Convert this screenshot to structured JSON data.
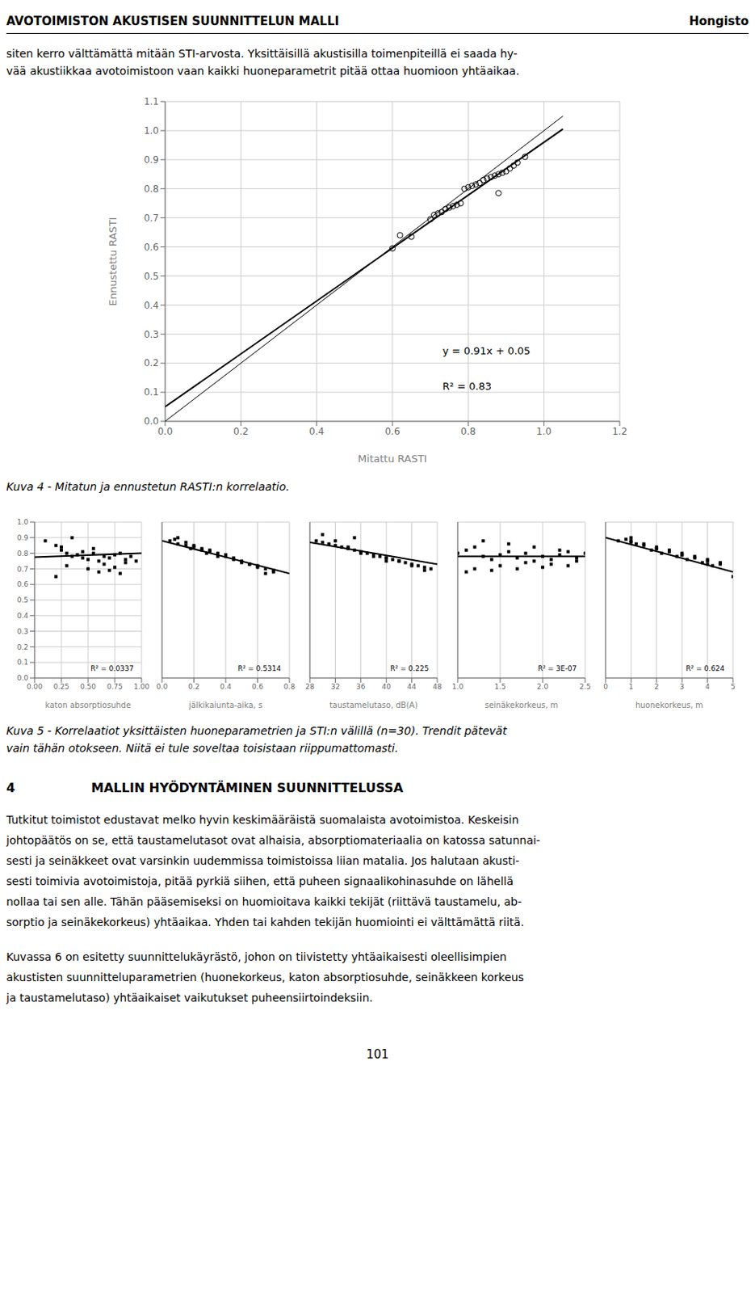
{
  "page": {
    "header_left": "AVOTOIMISTON AKUSTISEN SUUNNITTELUN MALLI",
    "header_right": "Hongisto",
    "paragraph_1": [
      "siten kerro välttämättä mitään STI-arvosta. Yksittäisillä akustisilla toimenpiteillä ei saada hy-",
      "vää akustiikkaa avotoimistoon vaan kaikki huoneparametrit pitää ottaa huomioon yhtäaikaa."
    ],
    "caption_4": "Kuva 4 - Mitatun ja ennustetun RASTI:n korrelaatio.",
    "caption_5": [
      "Kuva 5 - Korrelaatiot yksittäisten huoneparametrien ja STI:n välillä (n=30). Trendit pätevät",
      "vain tähän otokseen. Niitä ei tule soveltaa toisistaan riippumattomasti."
    ],
    "section_number": "4",
    "section_title": "MALLIN HYÖDYNTÄMINEN SUUNNITTELUSSA",
    "paragraph_4_1": [
      "Tutkitut toimistot edustavat melko hyvin keskimääräistä suomalaista avotoimistoa. Keskeisin",
      "johtopäätös on se, että taustamelutasot ovat alhaisia, absorptiomateriaalia on katossa satunnai-",
      "sesti ja seinäkkeet ovat varsinkin uudemmissa toimistoissa liian matalia. Jos halutaan akusti-",
      "sesti toimivia avotoimistoja, pitää pyrkiä siihen, että puheen signaalikohinasuhde on lähellä",
      "nollaa tai sen alle. Tähän pääsemiseksi on huomioitava kaikki tekijät (riittävä taustamelu, ab-",
      "sorptio ja seinäkekorkeus) yhtäaikaa. Yhden tai kahden tekijän huomiointi ei välttämättä riitä."
    ],
    "paragraph_4_2": [
      "Kuvassa 6 on esitetty suunnittelukäyrästö, johon on tiivistetty yhtäaikaisesti oleellisimpien",
      "akustisten suunnitteluparametrien (huonekorkeus, katon absorptiosuhde, seinäkkeen korkeus",
      "ja taustamelutaso) yhtäaikaiset vaikutukset puheensiirtoindeksiin."
    ],
    "page_number": "101"
  },
  "chart_data": [
    {
      "type": "scatter",
      "x_label": "Mitattu RASTI",
      "y_label": "Ennustettu RASTI",
      "xlim": [
        0.0,
        1.2
      ],
      "ylim": [
        0.0,
        1.1
      ],
      "xticks": [
        {
          "value": 0.0,
          "label": "0.0"
        },
        0.2,
        0.4,
        0.6,
        0.8,
        {
          "value": 1.0,
          "label": "1.0"
        },
        1.2
      ],
      "yticks": [
        {
          "value": 0.0,
          "label": "0.0"
        },
        0.1,
        0.2,
        0.3,
        0.4,
        0.5,
        0.6,
        0.7,
        0.8,
        0.9,
        {
          "value": 1.0,
          "label": "1.0"
        },
        1.1
      ],
      "grid": true,
      "annotations": [
        "y = 0.91x + 0.05",
        "R² = 0.83"
      ],
      "series": [
        {
          "type": "scatter",
          "marker": "circle",
          "color": "#000000",
          "x": [
            0.6,
            0.62,
            0.65,
            0.7,
            0.71,
            0.72,
            0.73,
            0.74,
            0.75,
            0.76,
            0.77,
            0.78,
            0.79,
            0.8,
            0.81,
            0.82,
            0.83,
            0.84,
            0.85,
            0.86,
            0.87,
            0.88,
            0.89,
            0.9,
            0.91,
            0.92,
            0.93,
            0.95,
            0.88
          ],
          "values": [
            0.595,
            0.64,
            0.635,
            0.695,
            0.71,
            0.715,
            0.72,
            0.73,
            0.735,
            0.74,
            0.745,
            0.75,
            0.8,
            0.805,
            0.81,
            0.815,
            0.82,
            0.83,
            0.835,
            0.84,
            0.845,
            0.85,
            0.855,
            0.86,
            0.87,
            0.88,
            0.89,
            0.91,
            0.785
          ]
        },
        {
          "type": "line",
          "line_style": "solid",
          "color": "#000000",
          "x": [
            0.0,
            1.05
          ],
          "values": [
            0.05,
            1.0055
          ]
        },
        {
          "type": "line",
          "line_style": "solid",
          "color": "#000000",
          "x": [
            0.0,
            1.05
          ],
          "values": [
            0.0,
            1.05
          ]
        }
      ]
    },
    {
      "type": "scatter",
      "x_label": "katon absorptiosuhde",
      "xlim": [
        0.0,
        1.0
      ],
      "ylim": [
        0.0,
        1.0
      ],
      "xticks": [
        {
          "value": 0.0,
          "label": "0.00"
        },
        0.25,
        {
          "value": 0.5,
          "label": "0.50"
        },
        0.75,
        {
          "value": 1.0,
          "label": "1.00"
        }
      ],
      "yticks": [
        {
          "value": 0.0,
          "label": "0.0"
        },
        0.1,
        0.2,
        0.3,
        0.4,
        0.5,
        0.6,
        0.7,
        0.8,
        0.9,
        {
          "value": 1.0,
          "label": "1.0"
        }
      ],
      "grid": true,
      "annotations": [
        "R² = 0.0337"
      ],
      "series": [
        {
          "type": "scatter",
          "marker": "square",
          "color": "#000000",
          "x": [
            0.1,
            0.2,
            0.25,
            0.3,
            0.35,
            0.4,
            0.45,
            0.5,
            0.55,
            0.6,
            0.65,
            0.7,
            0.75,
            0.8,
            0.85,
            0.9,
            0.95,
            0.3,
            0.5,
            0.6,
            0.7,
            0.8,
            0.25,
            0.45,
            0.65,
            0.85,
            0.35,
            0.55,
            0.75,
            0.2
          ],
          "values": [
            0.88,
            0.85,
            0.82,
            0.8,
            0.78,
            0.79,
            0.77,
            0.76,
            0.8,
            0.75,
            0.78,
            0.77,
            0.79,
            0.8,
            0.76,
            0.78,
            0.75,
            0.72,
            0.7,
            0.68,
            0.69,
            0.67,
            0.84,
            0.81,
            0.73,
            0.74,
            0.9,
            0.83,
            0.71,
            0.65
          ]
        },
        {
          "type": "line",
          "line_style": "solid",
          "color": "#000000",
          "x": [
            0.0,
            1.0
          ],
          "values": [
            0.775,
            0.8
          ]
        }
      ]
    },
    {
      "type": "scatter",
      "x_label": "jälkikaiunta-aika, s",
      "xlim": [
        0.0,
        0.8
      ],
      "ylim": [
        0.0,
        1.0
      ],
      "xticks": [
        {
          "value": 0.0,
          "label": "0.0"
        },
        0.2,
        0.4,
        0.6,
        0.8
      ],
      "yticks": [
        {
          "value": 0.0,
          "label": "0.0"
        },
        0.1,
        0.2,
        0.3,
        0.4,
        0.5,
        0.6,
        0.7,
        0.8,
        0.9,
        {
          "value": 1.0,
          "label": "1.0"
        }
      ],
      "grid": true,
      "tick_labels": "x",
      "annotations": [
        "R² = 0.5314"
      ],
      "series": [
        {
          "type": "scatter",
          "marker": "square",
          "color": "#000000",
          "x": [
            0.05,
            0.1,
            0.15,
            0.2,
            0.25,
            0.3,
            0.35,
            0.4,
            0.45,
            0.5,
            0.55,
            0.6,
            0.65,
            0.7,
            0.1,
            0.2,
            0.3,
            0.4,
            0.5,
            0.6,
            0.7,
            0.15,
            0.25,
            0.35,
            0.45,
            0.55,
            0.65,
            0.08,
            0.18,
            0.28
          ],
          "values": [
            0.88,
            0.86,
            0.85,
            0.84,
            0.83,
            0.82,
            0.8,
            0.78,
            0.76,
            0.75,
            0.73,
            0.72,
            0.7,
            0.68,
            0.9,
            0.85,
            0.81,
            0.79,
            0.74,
            0.71,
            0.69,
            0.87,
            0.82,
            0.78,
            0.77,
            0.73,
            0.67,
            0.89,
            0.83,
            0.8
          ]
        },
        {
          "type": "line",
          "line_style": "solid",
          "color": "#000000",
          "x": [
            0.0,
            0.8
          ],
          "values": [
            0.88,
            0.67
          ]
        }
      ]
    },
    {
      "type": "scatter",
      "x_label": "taustamelutaso, dB(A)",
      "xlim": [
        28,
        48
      ],
      "ylim": [
        0.0,
        1.0
      ],
      "xticks": [
        28,
        32,
        36,
        40,
        44,
        48
      ],
      "yticks": [
        {
          "value": 0.0,
          "label": "0.0"
        },
        0.1,
        0.2,
        0.3,
        0.4,
        0.5,
        0.6,
        0.7,
        0.8,
        0.9,
        {
          "value": 1.0,
          "label": "1.0"
        }
      ],
      "grid": true,
      "tick_labels": "x",
      "annotations": [
        "R² = 0.225"
      ],
      "series": [
        {
          "type": "scatter",
          "marker": "square",
          "color": "#000000",
          "x": [
            29,
            30,
            31,
            32,
            33,
            34,
            35,
            36,
            37,
            38,
            39,
            40,
            41,
            42,
            43,
            44,
            45,
            46,
            47,
            30,
            32,
            34,
            36,
            38,
            40,
            42,
            44,
            46,
            35,
            40
          ],
          "values": [
            0.88,
            0.87,
            0.86,
            0.85,
            0.84,
            0.83,
            0.82,
            0.81,
            0.8,
            0.79,
            0.78,
            0.77,
            0.76,
            0.75,
            0.74,
            0.73,
            0.72,
            0.71,
            0.7,
            0.92,
            0.88,
            0.84,
            0.8,
            0.78,
            0.77,
            0.75,
            0.72,
            0.69,
            0.9,
            0.75
          ]
        },
        {
          "type": "line",
          "line_style": "solid",
          "color": "#000000",
          "x": [
            28,
            48
          ],
          "values": [
            0.87,
            0.73
          ]
        }
      ]
    },
    {
      "type": "scatter",
      "x_label": "seinäkekorkeus, m",
      "xlim": [
        1.0,
        2.5
      ],
      "ylim": [
        0.0,
        1.0
      ],
      "xticks": [
        {
          "value": 1.0,
          "label": "1.0"
        },
        1.5,
        {
          "value": 2.0,
          "label": "2.0"
        },
        2.5
      ],
      "yticks": [
        {
          "value": 0.0,
          "label": "0.0"
        },
        0.1,
        0.2,
        0.3,
        0.4,
        0.5,
        0.6,
        0.7,
        0.8,
        0.9,
        {
          "value": 1.0,
          "label": "1.0"
        }
      ],
      "grid": true,
      "tick_labels": "x",
      "annotations": [
        "R² = 3E-07"
      ],
      "series": [
        {
          "type": "scatter",
          "marker": "square",
          "color": "#000000",
          "x": [
            1.0,
            1.1,
            1.2,
            1.3,
            1.4,
            1.5,
            1.6,
            1.7,
            1.8,
            1.9,
            2.0,
            2.1,
            2.2,
            2.3,
            2.4,
            2.5,
            1.2,
            1.5,
            1.8,
            2.1,
            2.4,
            1.3,
            1.6,
            1.9,
            2.2,
            1.1,
            1.4,
            1.7,
            2.0,
            2.3
          ],
          "values": [
            0.8,
            0.82,
            0.84,
            0.78,
            0.76,
            0.79,
            0.81,
            0.77,
            0.8,
            0.75,
            0.78,
            0.76,
            0.79,
            0.81,
            0.77,
            0.8,
            0.7,
            0.72,
            0.74,
            0.73,
            0.75,
            0.88,
            0.86,
            0.84,
            0.82,
            0.68,
            0.69,
            0.7,
            0.71,
            0.72
          ]
        },
        {
          "type": "line",
          "line_style": "solid",
          "color": "#000000",
          "x": [
            1.0,
            2.5
          ],
          "values": [
            0.78,
            0.78
          ]
        }
      ]
    },
    {
      "type": "scatter",
      "x_label": "huonekorkeus, m",
      "xlim": [
        0,
        5
      ],
      "ylim": [
        0.0,
        1.0
      ],
      "xticks": [
        0,
        1,
        2,
        3,
        4,
        5
      ],
      "yticks": [
        {
          "value": 0.0,
          "label": "0.0"
        },
        0.1,
        0.2,
        0.3,
        0.4,
        0.5,
        0.6,
        0.7,
        0.8,
        0.9,
        {
          "value": 1.0,
          "label": "1.0"
        }
      ],
      "grid": true,
      "tick_labels": "x",
      "annotations": [
        "R² = 0.624"
      ],
      "series": [
        {
          "type": "scatter",
          "marker": "square",
          "color": "#000000",
          "x": [
            0.5,
            1.0,
            1.5,
            2.0,
            2.5,
            3.0,
            3.5,
            4.0,
            4.5,
            1.0,
            1.5,
            2.0,
            2.5,
            3.0,
            3.5,
            4.0,
            4.5,
            0.8,
            1.2,
            1.8,
            2.2,
            2.8,
            3.2,
            3.8,
            4.2,
            1.0,
            2.0,
            3.0,
            4.0,
            5.0
          ],
          "values": [
            0.88,
            0.87,
            0.86,
            0.84,
            0.82,
            0.8,
            0.78,
            0.76,
            0.74,
            0.9,
            0.85,
            0.83,
            0.81,
            0.79,
            0.77,
            0.75,
            0.73,
            0.89,
            0.86,
            0.82,
            0.8,
            0.78,
            0.76,
            0.74,
            0.72,
            0.88,
            0.83,
            0.79,
            0.73,
            0.65
          ]
        },
        {
          "type": "line",
          "line_style": "solid",
          "color": "#000000",
          "x": [
            0,
            5
          ],
          "values": [
            0.9,
            0.68
          ]
        }
      ]
    }
  ]
}
